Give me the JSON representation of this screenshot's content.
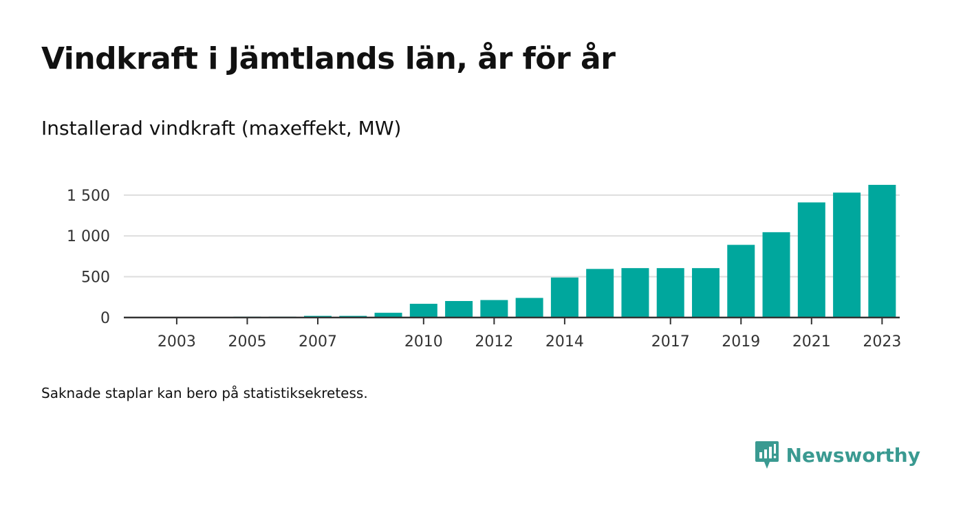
{
  "header": {
    "title": "Vindkraft i Jämtlands län, år för år",
    "subtitle": "Installerad vindkraft (maxeffekt, MW)"
  },
  "footer": {
    "note": "Saknade staplar kan bero på statistiksekretess.",
    "brand": "Newsworthy"
  },
  "colors": {
    "bar": "#00a79d",
    "brand": "#3a9a91",
    "grid": "#dddddd",
    "axis": "#333333"
  },
  "chart_data": {
    "type": "bar",
    "title": "Vindkraft i Jämtlands län, år för år",
    "subtitle": "Installerad vindkraft (maxeffekt, MW)",
    "xlabel": "",
    "ylabel": "",
    "x_range": [
      2002,
      2024
    ],
    "ylim": [
      0,
      1650
    ],
    "yticks": [
      0,
      500,
      1000,
      1500
    ],
    "ytick_labels": [
      "0",
      "500",
      "1 000",
      "1 500"
    ],
    "xticks": [
      2003,
      2005,
      2007,
      2010,
      2012,
      2014,
      2017,
      2019,
      2021,
      2023
    ],
    "grid": true,
    "legend": "none",
    "categories": [
      2002,
      2003,
      2004,
      2005,
      2006,
      2007,
      2008,
      2009,
      2010,
      2011,
      2012,
      2013,
      2014,
      2015,
      2016,
      2017,
      2018,
      2019,
      2020,
      2021,
      2022,
      2023
    ],
    "values": [
      1,
      1,
      1,
      10,
      10,
      20,
      20,
      58,
      168,
      202,
      214,
      240,
      490,
      595,
      605,
      605,
      605,
      890,
      1045,
      1410,
      1530,
      1625
    ]
  }
}
